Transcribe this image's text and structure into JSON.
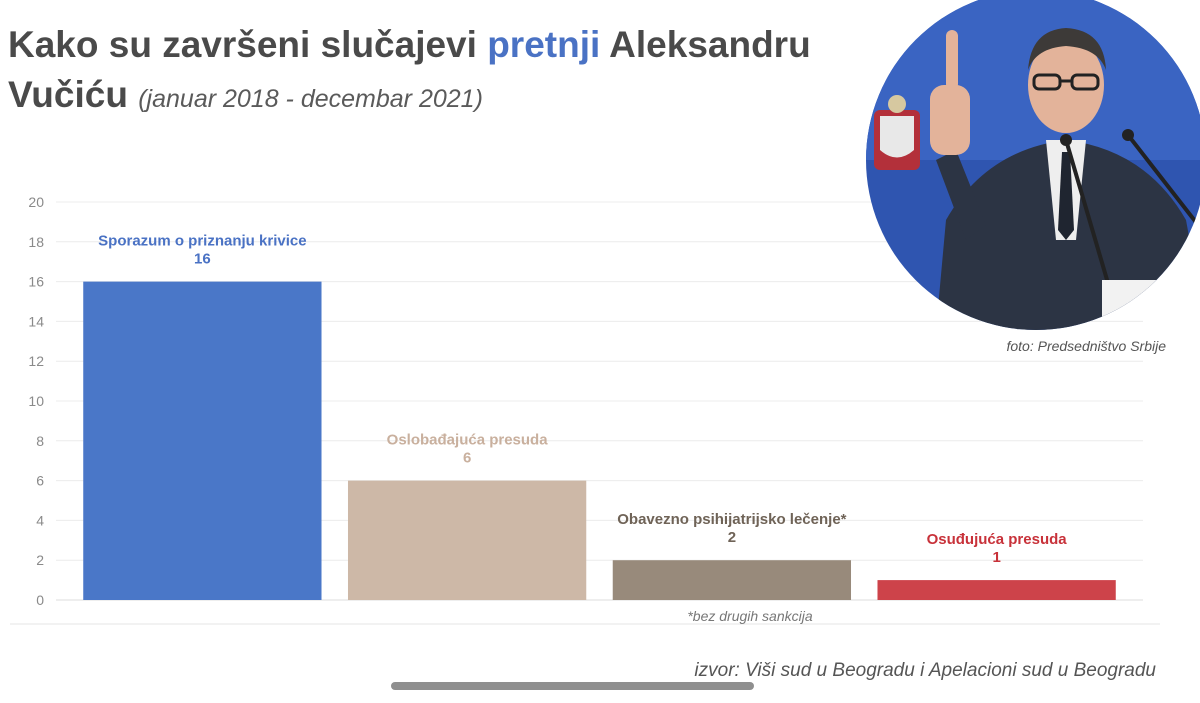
{
  "title": {
    "part1": "Kako su završeni slučajevi ",
    "highlight": "pretnji",
    "part2": " Aleksandru Vučiću",
    "subtitle": "(januar 2018 - decembar 2021)"
  },
  "photo": {
    "credit": "foto: Predsedništvo Srbije"
  },
  "chart_data": {
    "type": "bar",
    "categories": [
      "Sporazum o priznanju krivice",
      "Oslobađajuća presuda",
      "Obavezno psihijatrijsko lečenje*",
      "Osuđujuća presuda"
    ],
    "values": [
      16,
      6,
      2,
      1
    ],
    "colors": [
      "#4a77c8",
      "#cdb8a7",
      "#988a7b",
      "#cd434a"
    ],
    "label_colors": [
      "#4a72c4",
      "#c9b09e",
      "#6f6357",
      "#c8323a"
    ],
    "ylim": [
      0,
      20
    ],
    "yticks": [
      0,
      2,
      4,
      6,
      8,
      10,
      12,
      14,
      16,
      18,
      20
    ],
    "grid": true,
    "footnote": "*bez drugih sankcija"
  },
  "source": "izvor: Viši sud u Beogradu i Apelacioni sud u Beogradu"
}
